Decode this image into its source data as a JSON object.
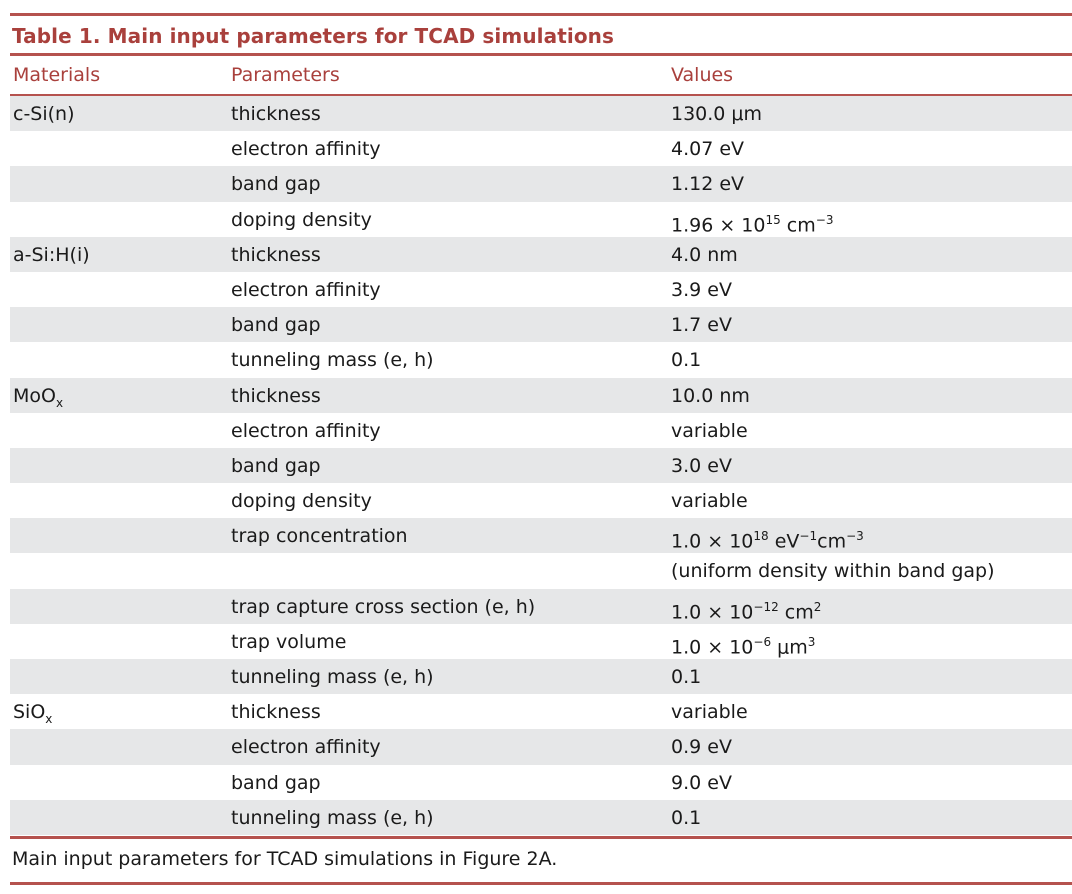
{
  "caption": "Table 1.  Main input parameters for TCAD simulations",
  "columns": {
    "materials": "Materials",
    "parameters": "Parameters",
    "values": "Values"
  },
  "rows": [
    {
      "material": "c-Si(n)",
      "parameter": "thickness",
      "value": "130.0 μm"
    },
    {
      "material": "",
      "parameter": "electron affinity",
      "value": "4.07 eV"
    },
    {
      "material": "",
      "parameter": "band gap",
      "value": "1.12 eV"
    },
    {
      "material": "",
      "parameter": "doping density",
      "value": "1.96 × 10",
      "value_sup": "15",
      "value_tail": " cm",
      "value_sup2": "−3"
    },
    {
      "material": "a-Si:H(i)",
      "parameter": "thickness",
      "value": "4.0 nm"
    },
    {
      "material": "",
      "parameter": "electron affinity",
      "value": "3.9 eV"
    },
    {
      "material": "",
      "parameter": "band gap",
      "value": "1.7 eV"
    },
    {
      "material": "",
      "parameter": "tunneling mass (e, h)",
      "value": "0.1"
    },
    {
      "material": "MoO",
      "material_sub": "x",
      "parameter": "thickness",
      "value": "10.0 nm"
    },
    {
      "material": "",
      "parameter": "electron affinity",
      "value": "variable"
    },
    {
      "material": "",
      "parameter": "band gap",
      "value": "3.0 eV"
    },
    {
      "material": "",
      "parameter": "doping density",
      "value": "variable"
    },
    {
      "material": "",
      "parameter": "trap concentration",
      "value": "1.0 × 10",
      "value_sup": "18",
      "value_tail": " eV",
      "value_sup2": "−1",
      "value_tail2": "cm",
      "value_sup3": "−3"
    },
    {
      "material": "",
      "parameter": "",
      "value": "(uniform density within band gap)"
    },
    {
      "material": "",
      "parameter": "trap capture cross section (e, h)",
      "value": "1.0 × 10",
      "value_sup": "−12",
      "value_tail": " cm",
      "value_sup2": "2"
    },
    {
      "material": "",
      "parameter": "trap volume",
      "value": "1.0 × 10",
      "value_sup": "−6",
      "value_tail": " μm",
      "value_sup2": "3"
    },
    {
      "material": "",
      "parameter": "tunneling mass (e, h)",
      "value": "0.1"
    },
    {
      "material": "SiO",
      "material_sub": "x",
      "parameter": "thickness",
      "value": "variable"
    },
    {
      "material": "",
      "parameter": "electron affinity",
      "value": "0.9 eV"
    },
    {
      "material": "",
      "parameter": "band gap",
      "value": "9.0 eV"
    },
    {
      "material": "",
      "parameter": "tunneling mass (e, h)",
      "value": "0.1"
    }
  ],
  "footnote": "Main input parameters for TCAD simulations in Figure 2A.",
  "colors": {
    "accent": "#a9403c",
    "rule": "#b5524e",
    "row_shade": "#e6e7e8"
  }
}
